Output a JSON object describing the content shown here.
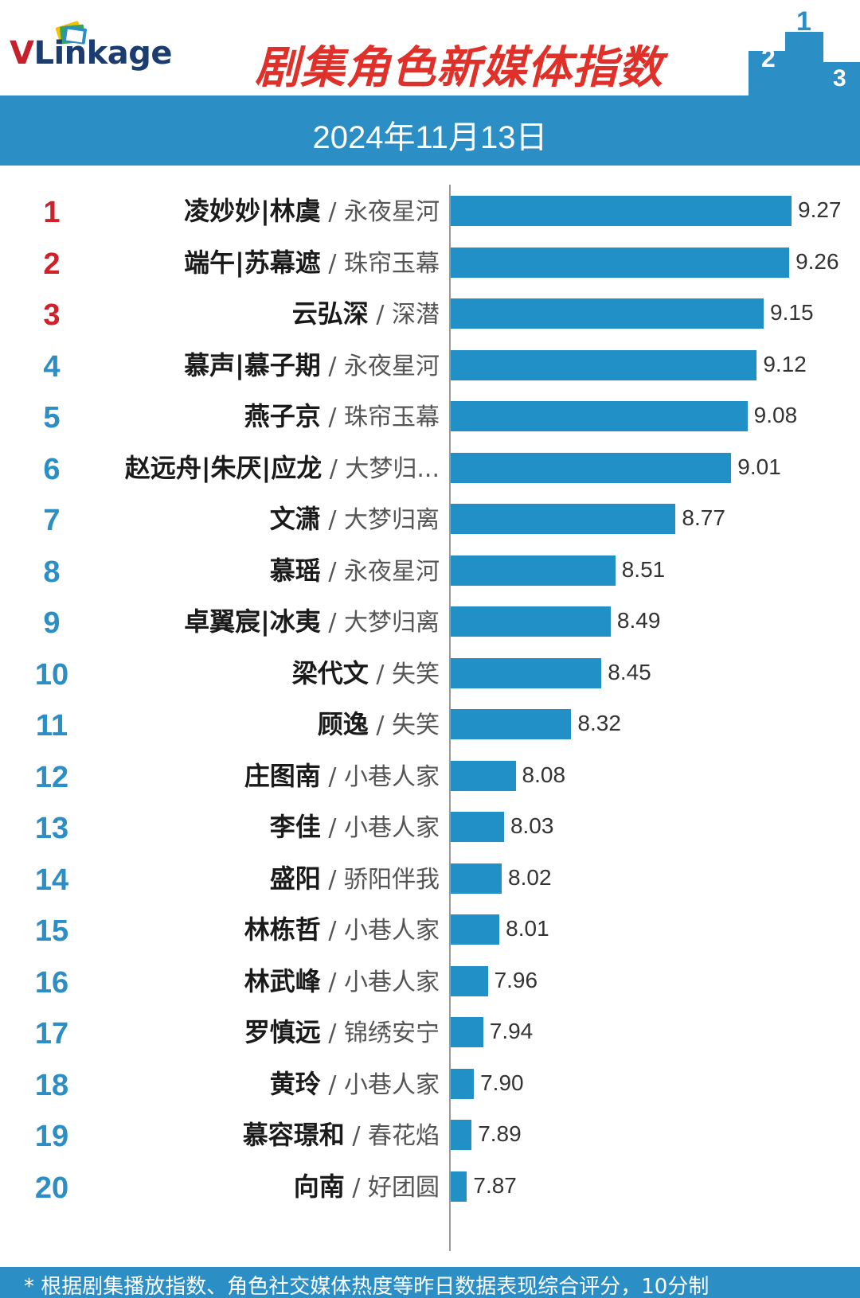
{
  "header": {
    "logo_v": "V",
    "logo_rest": "Linkage",
    "title": "剧集角色新媒体指数",
    "podium_labels": [
      "2",
      "1",
      "3"
    ]
  },
  "date": "2024年11月13日",
  "colors": {
    "bar": "#2190c7",
    "date_bar": "#2b8fc6",
    "title": "#e0302a",
    "rank_top3": "#d0202a",
    "rank_other": "#2b8fc6"
  },
  "chart_data": {
    "type": "bar",
    "orientation": "horizontal",
    "title": "剧集角色新媒体指数",
    "subtitle": "2024年11月13日",
    "categories": [
      {
        "rank": "1",
        "name": "凌妙妙|林虞",
        "sep": " / ",
        "show": "永夜星河"
      },
      {
        "rank": "2",
        "name": "端午|苏幕遮",
        "sep": " / ",
        "show": "珠帘玉幕"
      },
      {
        "rank": "3",
        "name": "云弘深",
        "sep": " / ",
        "show": "深潜"
      },
      {
        "rank": "4",
        "name": "慕声|慕子期",
        "sep": " / ",
        "show": "永夜星河"
      },
      {
        "rank": "5",
        "name": "燕子京",
        "sep": " / ",
        "show": "珠帘玉幕"
      },
      {
        "rank": "6",
        "name": "赵远舟|朱厌|应龙",
        "sep": " / ",
        "show": "大梦归..."
      },
      {
        "rank": "7",
        "name": "文潇",
        "sep": " / ",
        "show": "大梦归离"
      },
      {
        "rank": "8",
        "name": "慕瑶",
        "sep": " / ",
        "show": "永夜星河"
      },
      {
        "rank": "9",
        "name": "卓翼宸|冰夷",
        "sep": " / ",
        "show": "大梦归离"
      },
      {
        "rank": "10",
        "name": "梁代文",
        "sep": " / ",
        "show": "失笑"
      },
      {
        "rank": "11",
        "name": "顾逸",
        "sep": " / ",
        "show": "失笑"
      },
      {
        "rank": "12",
        "name": "庄图南",
        "sep": " / ",
        "show": "小巷人家"
      },
      {
        "rank": "13",
        "name": "李佳",
        "sep": " / ",
        "show": "小巷人家"
      },
      {
        "rank": "14",
        "name": "盛阳",
        "sep": " / ",
        "show": "骄阳伴我"
      },
      {
        "rank": "15",
        "name": "林栋哲",
        "sep": " / ",
        "show": "小巷人家"
      },
      {
        "rank": "16",
        "name": "林武峰",
        "sep": " / ",
        "show": "小巷人家"
      },
      {
        "rank": "17",
        "name": "罗慎远",
        "sep": " / ",
        "show": "锦绣安宁"
      },
      {
        "rank": "18",
        "name": "黄玲",
        "sep": " / ",
        "show": "小巷人家"
      },
      {
        "rank": "19",
        "name": "慕容璟和",
        "sep": " / ",
        "show": "春花焰"
      },
      {
        "rank": "20",
        "name": "向南",
        "sep": " / ",
        "show": "好团圆"
      }
    ],
    "values": [
      9.27,
      9.26,
      9.15,
      9.12,
      9.08,
      9.01,
      8.77,
      8.51,
      8.49,
      8.45,
      8.32,
      8.08,
      8.03,
      8.02,
      8.01,
      7.96,
      7.94,
      7.9,
      7.89,
      7.87
    ],
    "value_labels": [
      "9.27",
      "9.26",
      "9.15",
      "9.12",
      "9.08",
      "9.01",
      "8.77",
      "8.51",
      "8.49",
      "8.45",
      "8.32",
      "8.08",
      "8.03",
      "8.02",
      "8.01",
      "7.96",
      "7.94",
      "7.90",
      "7.89",
      "7.87"
    ],
    "xlim": [
      7.8,
      9.3
    ]
  },
  "footer": {
    "note": "* 根据剧集播放指数、角色社交媒体热度等昨日数据表现综合评分，10分制"
  }
}
